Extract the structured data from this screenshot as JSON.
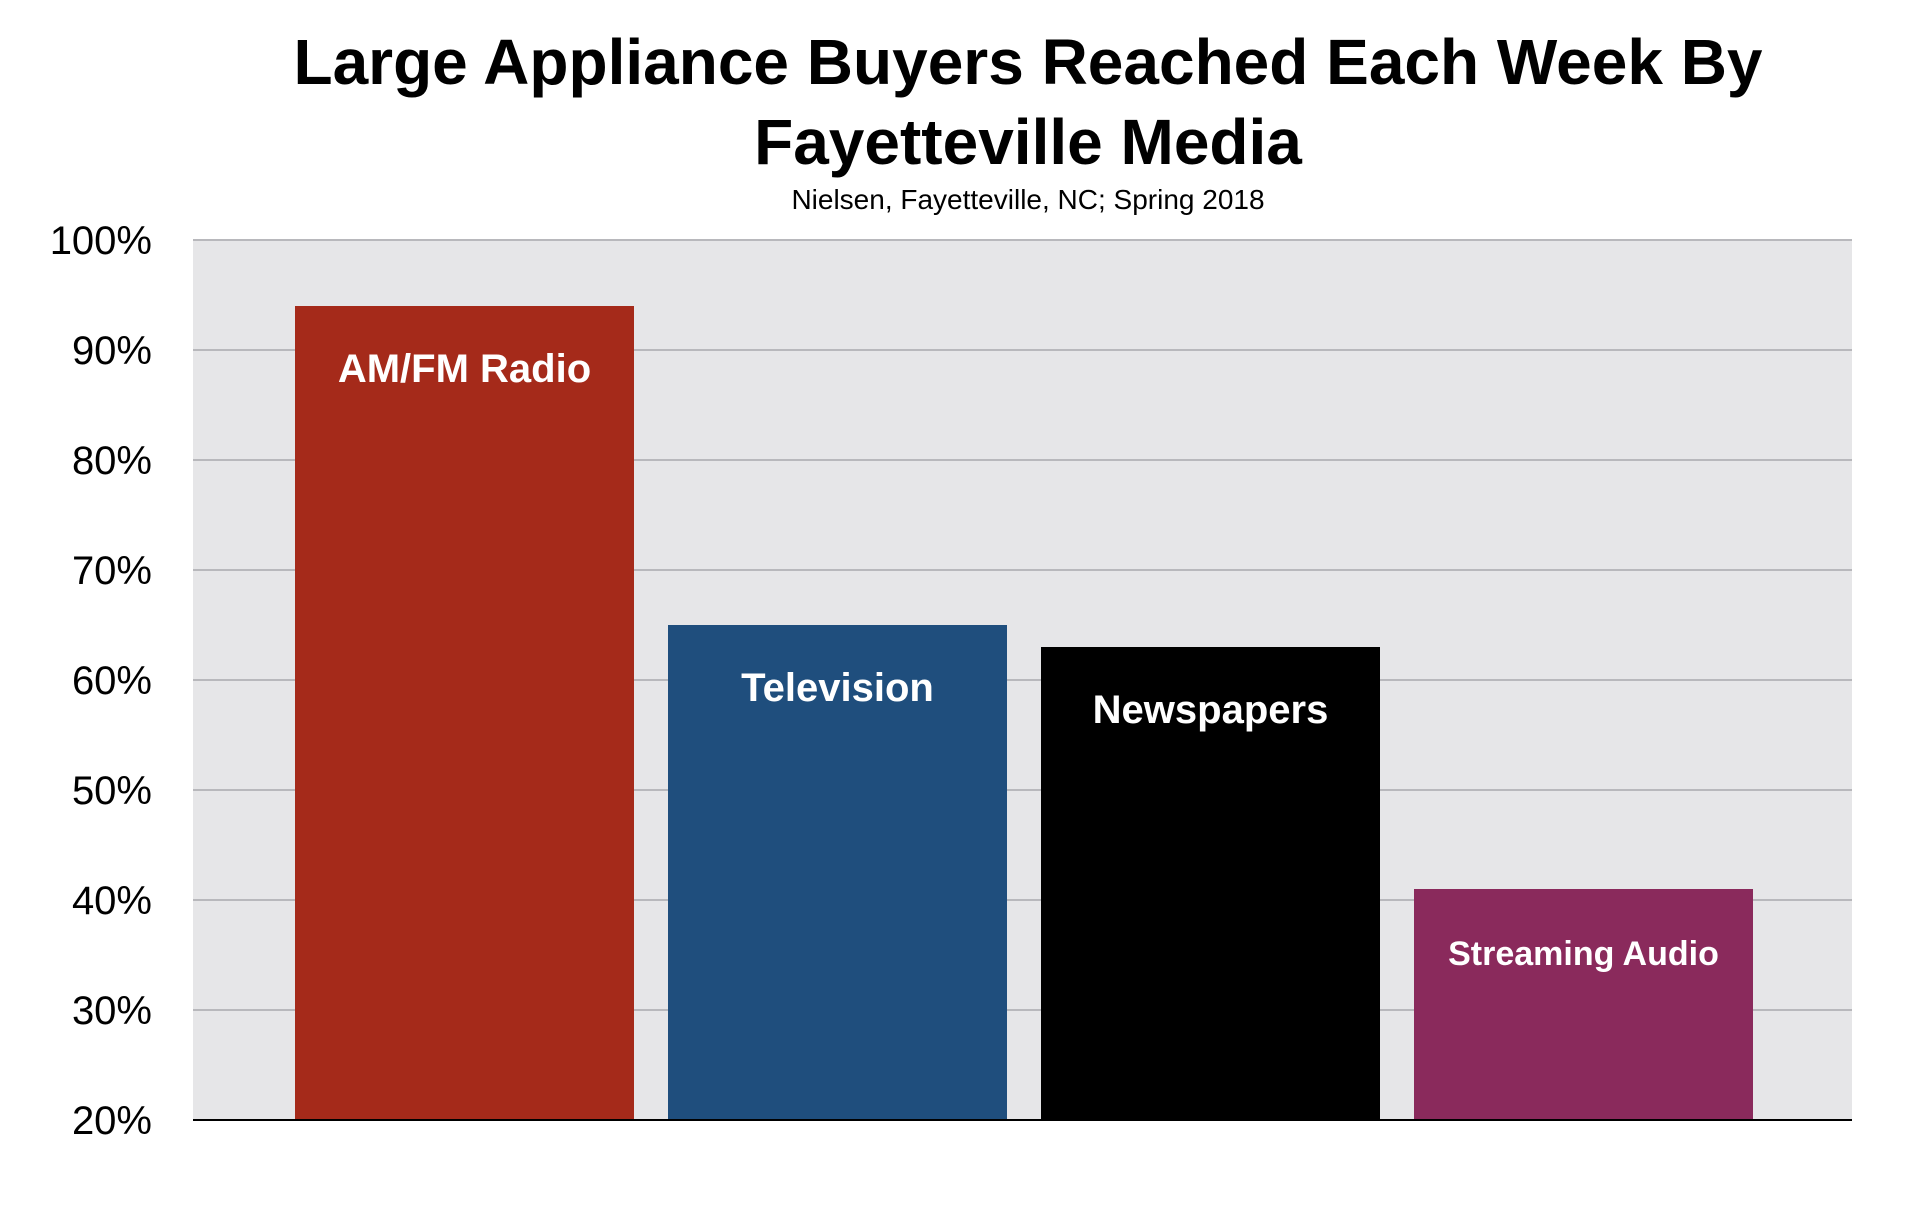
{
  "chart_data": {
    "type": "bar",
    "title_lines": [
      "Large Appliance Buyers Reached Each Week By",
      "Fayetteville Media"
    ],
    "subtitle": "Nielsen, Fayetteville, NC; Spring 2018",
    "xlabel": "",
    "ylabel": "",
    "ylim": [
      20,
      100
    ],
    "y_ticks": [
      20,
      30,
      40,
      50,
      60,
      70,
      80,
      90,
      100
    ],
    "y_tick_labels": [
      "20%",
      "30%",
      "40%",
      "50%",
      "60%",
      "70%",
      "80%",
      "90%",
      "100%"
    ],
    "grid": true,
    "legend": "none",
    "categories": [
      "AM/FM Radio",
      "Television",
      "Newspapers",
      "Streaming Audio"
    ],
    "values": [
      94,
      65,
      63,
      41
    ],
    "colors": [
      "#A52A1A",
      "#1F4E7D",
      "#000000",
      "#8A2A5C"
    ],
    "plot_background": "#E6E6E8",
    "grid_color": "#B8B8BC"
  }
}
